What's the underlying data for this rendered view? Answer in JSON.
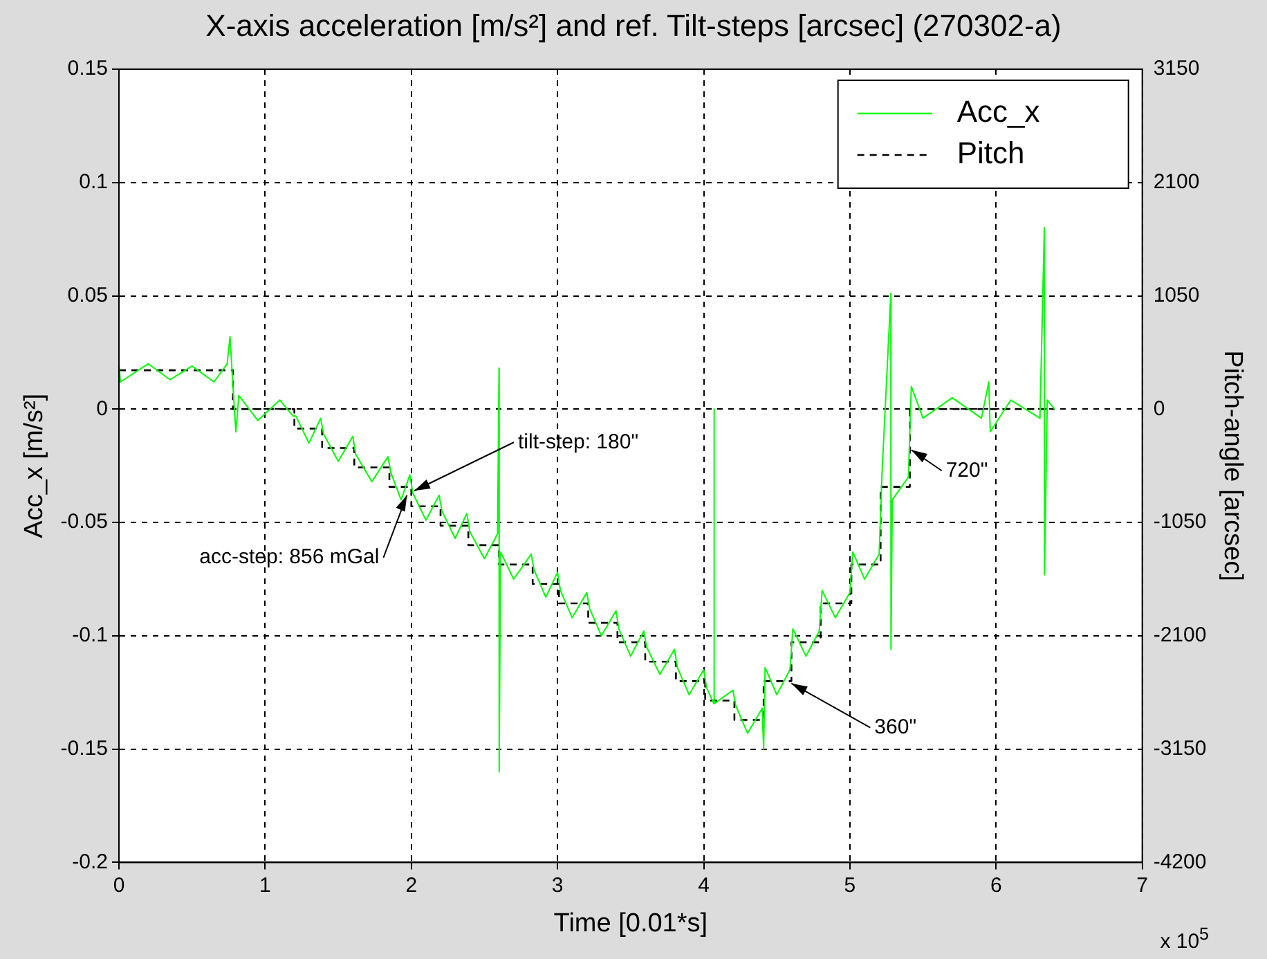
{
  "chart_data": {
    "type": "line",
    "title": "X-axis acceleration [m/s²] and ref. Tilt-steps [arcsec]  (270302-a)",
    "xlabel": "Time [0.01*s]",
    "ylabel": "Acc_x [m/s²]",
    "y2label": "Pitch-angle [arcsec]",
    "xlim": [
      0,
      7
    ],
    "xticks": [
      0,
      1,
      2,
      3,
      4,
      5,
      6,
      7
    ],
    "ylim": [
      -0.2,
      0.15
    ],
    "yticks": [
      -0.2,
      -0.15,
      -0.1,
      -0.05,
      0,
      0.05,
      0.1,
      0.15
    ],
    "y2lim": [
      -4200,
      3150
    ],
    "y2ticks": [
      -4200,
      -3150,
      -2100,
      -1050,
      0,
      1050,
      2100,
      3150
    ],
    "grid": true,
    "legend": "top right",
    "marker": "none",
    "series": [
      {
        "name": "Acc_x",
        "type": "line",
        "color": "#00ff00",
        "line_style": "solid",
        "x": [
          0,
          0.01,
          0.2,
          0.35,
          0.5,
          0.65,
          0.74,
          0.76,
          0.78,
          0.8,
          0.82,
          0.95,
          1.1,
          1.19,
          1.21,
          1.3,
          1.38,
          1.4,
          1.5,
          1.6,
          1.62,
          1.73,
          1.84,
          1.86,
          1.93,
          1.99,
          2.01,
          2.1,
          2.19,
          2.21,
          2.3,
          2.38,
          2.4,
          2.5,
          2.59,
          2.6,
          2.601,
          2.61,
          2.7,
          2.82,
          2.84,
          2.92,
          3.0,
          3.02,
          3.1,
          3.2,
          3.22,
          3.3,
          3.4,
          3.42,
          3.5,
          3.59,
          3.61,
          3.7,
          3.8,
          3.82,
          3.9,
          4.0,
          4.02,
          4.07,
          4.071,
          4.072,
          4.2,
          4.22,
          4.3,
          4.4,
          4.41,
          4.42,
          4.5,
          4.59,
          4.61,
          4.7,
          4.79,
          4.81,
          4.9,
          5.0,
          5.02,
          5.1,
          5.2,
          5.22,
          5.28,
          5.281,
          5.29,
          5.4,
          5.42,
          5.5,
          5.7,
          5.9,
          5.95,
          5.96,
          6.1,
          6.3,
          6.33,
          6.331,
          6.35,
          6.4
        ],
        "values": [
          0.02,
          0.012,
          0.02,
          0.013,
          0.019,
          0.012,
          0.02,
          0.032,
          0.01,
          -0.01,
          0.006,
          -0.005,
          0.004,
          -0.003,
          -0.003,
          -0.015,
          -0.004,
          -0.011,
          -0.023,
          -0.012,
          -0.02,
          -0.032,
          -0.021,
          -0.028,
          -0.04,
          -0.029,
          -0.037,
          -0.049,
          -0.038,
          -0.045,
          -0.057,
          -0.046,
          -0.054,
          -0.066,
          -0.055,
          0.018,
          -0.16,
          -0.063,
          -0.075,
          -0.064,
          -0.071,
          -0.083,
          -0.072,
          -0.08,
          -0.092,
          -0.081,
          -0.088,
          -0.1,
          -0.089,
          -0.097,
          -0.109,
          -0.098,
          -0.105,
          -0.117,
          -0.106,
          -0.114,
          -0.126,
          -0.115,
          -0.123,
          -0.13,
          0,
          -0.13,
          -0.124,
          -0.131,
          -0.143,
          -0.132,
          -0.15,
          -0.114,
          -0.126,
          -0.115,
          -0.097,
          -0.109,
          -0.098,
          -0.08,
          -0.092,
          -0.081,
          -0.063,
          -0.075,
          -0.064,
          -0.028,
          0.051,
          -0.106,
          -0.04,
          -0.03,
          0.01,
          -0.004,
          0.005,
          -0.004,
          0.012,
          -0.01,
          0.004,
          -0.004,
          0.08,
          -0.073,
          0.004,
          0
        ]
      },
      {
        "name": "Pitch",
        "type": "step",
        "axis": "y2",
        "color": "#000000",
        "line_style": "dashed",
        "x": [
          0,
          0.78,
          1.2,
          1.39,
          1.61,
          1.85,
          2.0,
          2.2,
          2.39,
          2.6,
          2.83,
          3.01,
          3.21,
          3.41,
          3.6,
          3.81,
          4.01,
          4.21,
          4.41,
          4.6,
          4.8,
          5.01,
          5.21,
          5.41,
          6.4
        ],
        "values": [
          360,
          0,
          -180,
          -360,
          -540,
          -720,
          -900,
          -1080,
          -1260,
          -1440,
          -1620,
          -1800,
          -1980,
          -2160,
          -2340,
          -2520,
          -2700,
          -2880,
          -2520,
          -2160,
          -1800,
          -1440,
          -720,
          0,
          0
        ]
      }
    ],
    "annotations": [
      {
        "text": "tilt-step: 180\"",
        "x": 2.02,
        "y": -0.036
      },
      {
        "text": "acc-step: 856 mGal",
        "x": 1.97,
        "y": -0.038
      },
      {
        "text": "360\"",
        "x": 4.6,
        "y": -0.121
      },
      {
        "text": "720\"",
        "x": 5.42,
        "y": -0.018
      },
      "x 10$^{5}$"
    ]
  }
}
